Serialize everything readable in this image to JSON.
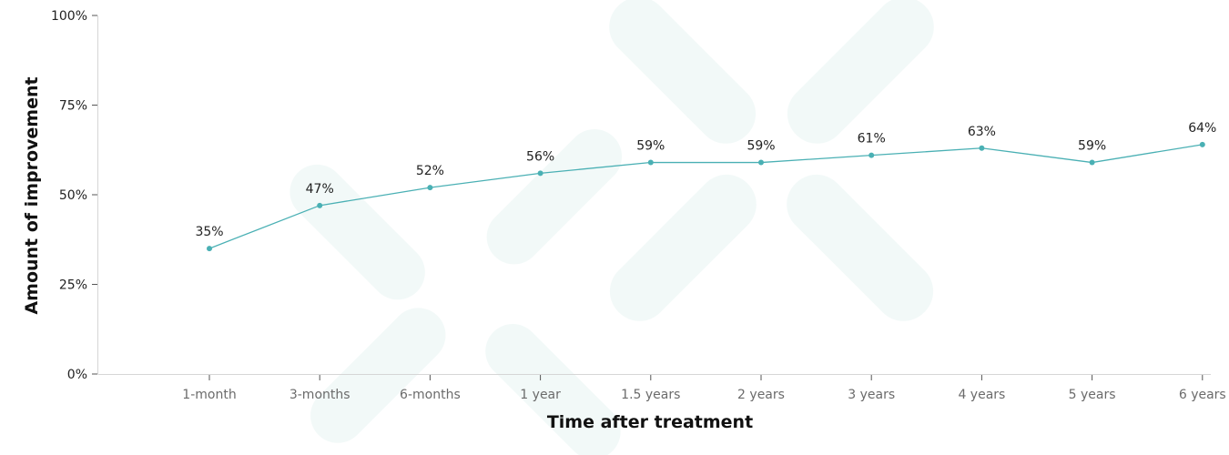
{
  "chart_data": {
    "type": "line",
    "xlabel": "Time after treatment",
    "ylabel": "Amount of improvement",
    "categories": [
      "1-month",
      "3-months",
      "6-months",
      "1 year",
      "1.5 years",
      "2 years",
      "3 years",
      "4 years",
      "5 years",
      "6 years"
    ],
    "series": [
      {
        "values": [
          35,
          47,
          52,
          56,
          59,
          59,
          61,
          63,
          59,
          64
        ],
        "data_labels": [
          "35%",
          "47%",
          "52%",
          "56%",
          "59%",
          "59%",
          "61%",
          "63%",
          "59%",
          "64%"
        ],
        "color": "#4ab0b4"
      }
    ],
    "ylim": [
      0,
      100
    ],
    "yticks": [
      0,
      25,
      50,
      75,
      100
    ],
    "ytick_labels": [
      "0%",
      "25%",
      "50%",
      "75%",
      "100%"
    ],
    "grid": false,
    "legend": "none"
  },
  "colors": {
    "line": "#4ab0b4",
    "watermark": "#e7f4f3"
  }
}
